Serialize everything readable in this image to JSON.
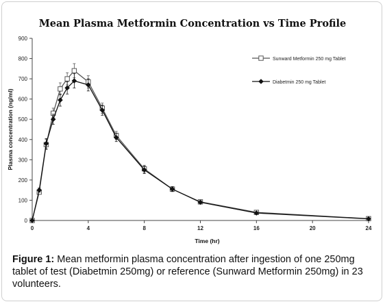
{
  "chart_data": {
    "type": "line",
    "title": "Mean Plasma Metformin Concentration vs Time Profile",
    "xlabel": "Time (hr)",
    "ylabel": "Plasma concentration (ng/ml)",
    "xlim": [
      0,
      24
    ],
    "ylim": [
      0,
      900
    ],
    "xticks": [
      0,
      4,
      8,
      12,
      16,
      20,
      24
    ],
    "yticks": [
      0,
      100,
      200,
      300,
      400,
      500,
      600,
      700,
      800,
      900
    ],
    "grid": false,
    "legend_position": "top-right",
    "series": [
      {
        "name": "Sunward Metformin 250 mg Tablet",
        "marker": "open-square",
        "color": "#555555",
        "x": [
          0,
          0.5,
          1,
          1.5,
          2,
          2.5,
          3,
          4,
          5,
          6,
          8,
          10,
          12,
          16,
          24
        ],
        "y": [
          0,
          140,
          375,
          530,
          650,
          700,
          740,
          685,
          555,
          420,
          255,
          155,
          92,
          40,
          9
        ],
        "error": [
          0,
          10,
          25,
          25,
          30,
          30,
          35,
          30,
          25,
          20,
          18,
          12,
          8,
          6,
          3
        ]
      },
      {
        "name": "Diabetmin 250 mg Tablet",
        "marker": "filled-diamond",
        "color": "#111111",
        "x": [
          0,
          0.5,
          1,
          1.5,
          2,
          2.5,
          3,
          4,
          5,
          6,
          8,
          10,
          12,
          16,
          24
        ],
        "y": [
          0,
          150,
          380,
          500,
          595,
          655,
          690,
          670,
          545,
          410,
          250,
          155,
          90,
          37,
          8
        ],
        "error": [
          0,
          10,
          25,
          25,
          30,
          30,
          35,
          30,
          25,
          20,
          18,
          12,
          8,
          6,
          3
        ]
      }
    ]
  },
  "caption": {
    "label": "Figure 1:",
    "text": " Mean metformin plasma concentration after ingestion of one 250mg tablet of test (Diabetmin 250mg) or reference (Sunward Metformin 250mg) in 23 volunteers."
  }
}
